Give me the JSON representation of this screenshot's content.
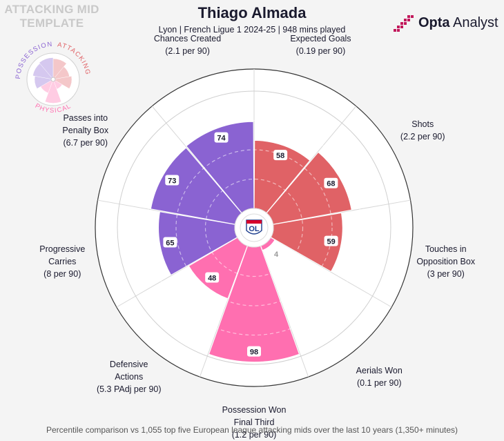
{
  "header": {
    "template_title": "ATTACKING MID TEMPLATE",
    "player_name": "Thiago Almada",
    "subtitle": "Lyon | French Ligue 1 2024-25 | 948 mins played",
    "brand_bold": "Opta",
    "brand_light": " Analyst"
  },
  "legend": {
    "groups": [
      "POSSESSION",
      "ATTACKING",
      "PHYSICAL"
    ],
    "colors": {
      "POSSESSION": "#8a63d2",
      "ATTACKING": "#e06266",
      "PHYSICAL": "#ff6fb0"
    }
  },
  "club_badge": {
    "top": "OLYMPIQUE LYONNAIS",
    "main": "OL"
  },
  "footnote": "Percentile comparison vs 1,055 top five European league attacking mids over the last 10 years (1,350+ minutes)",
  "chart_data": {
    "type": "polar-bar",
    "scale": [
      0,
      100
    ],
    "grid": true,
    "categories": [
      {
        "name": "Expected Goals",
        "value_label": "(0.19 per 90)",
        "percentile": 58,
        "group": "ATTACKING"
      },
      {
        "name": "Shots",
        "value_label": "(2.2 per 90)",
        "percentile": 68,
        "group": "ATTACKING"
      },
      {
        "name": "Touches in Opposition Box",
        "value_label": "(3 per 90)",
        "percentile": 59,
        "group": "ATTACKING"
      },
      {
        "name": "Aerials Won",
        "value_label": "(0.1 per 90)",
        "percentile": 4,
        "group": "PHYSICAL"
      },
      {
        "name": "Possession Won Final Third",
        "value_label": "(1.2 per 90)",
        "percentile": 98,
        "group": "PHYSICAL"
      },
      {
        "name": "Defensive Actions",
        "value_label": "(5.3 PAdj per 90)",
        "percentile": 48,
        "group": "PHYSICAL"
      },
      {
        "name": "Progressive Carries",
        "value_label": "(8 per 90)",
        "percentile": 65,
        "group": "POSSESSION"
      },
      {
        "name": "Passes into Penalty Box",
        "value_label": "(6.7 per 90)",
        "percentile": 73,
        "group": "POSSESSION"
      },
      {
        "name": "Chances Created",
        "value_label": "(2.1 per 90)",
        "percentile": 74,
        "group": "POSSESSION"
      }
    ],
    "label_lines": [
      [
        "Expected Goals",
        "(0.19 per 90)"
      ],
      [
        "Shots",
        "(2.2 per 90)"
      ],
      [
        "Touches in",
        "Opposition Box",
        "(3 per 90)"
      ],
      [
        "Aerials Won",
        "(0.1 per 90)"
      ],
      [
        "Possession Won",
        "Final Third",
        "(1.2 per 90)"
      ],
      [
        "Defensive",
        "Actions",
        "(5.3 PAdj per 90)"
      ],
      [
        "Progressive",
        "Carries",
        "(8 per 90)"
      ],
      [
        "Passes into",
        "Penalty Box",
        "(6.7 per 90)"
      ],
      [
        "Chances Created",
        "(2.1 per 90)"
      ]
    ]
  }
}
